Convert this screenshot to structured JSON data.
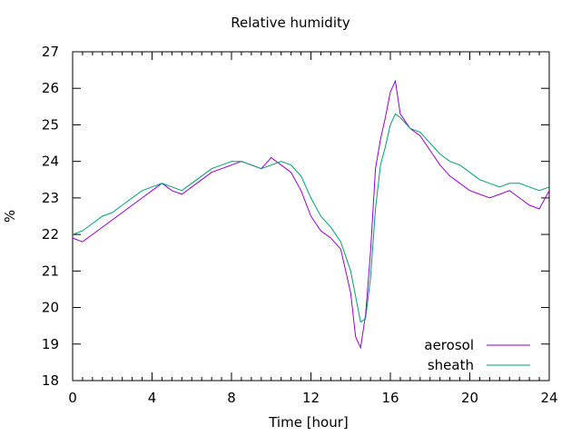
{
  "chart_data": {
    "type": "line",
    "title": "Relative humidity",
    "xlabel": "Time [hour]",
    "ylabel": "%",
    "xlim": [
      0,
      24
    ],
    "ylim": [
      18,
      27
    ],
    "xticks": [
      0,
      4,
      8,
      12,
      16,
      20,
      24
    ],
    "yticks": [
      18,
      19,
      20,
      21,
      22,
      23,
      24,
      25,
      26,
      27
    ],
    "grid": false,
    "legend": "bottom-right",
    "series": [
      {
        "name": "aerosol",
        "color": "#9400d3",
        "x": [
          0,
          0.5,
          1,
          1.5,
          2,
          2.5,
          3,
          3.5,
          4,
          4.5,
          5,
          5.5,
          6,
          6.5,
          7,
          7.5,
          8,
          8.5,
          9,
          9.5,
          10,
          10.5,
          11,
          11.5,
          12,
          12.5,
          13,
          13.5,
          14,
          14.25,
          14.5,
          14.75,
          15,
          15.25,
          15.5,
          15.75,
          16,
          16.25,
          16.5,
          17,
          17.5,
          18,
          18.5,
          19,
          19.5,
          20,
          20.5,
          21,
          21.5,
          22,
          22.5,
          23,
          23.5,
          24
        ],
        "y": [
          21.9,
          21.8,
          22.0,
          22.2,
          22.4,
          22.6,
          22.8,
          23.0,
          23.2,
          23.4,
          23.2,
          23.1,
          23.3,
          23.5,
          23.7,
          23.8,
          23.9,
          24.0,
          23.9,
          23.8,
          24.1,
          23.9,
          23.7,
          23.2,
          22.5,
          22.1,
          21.9,
          21.6,
          20.4,
          19.2,
          18.9,
          19.8,
          21.5,
          23.8,
          24.6,
          25.2,
          25.9,
          26.2,
          25.3,
          24.9,
          24.7,
          24.3,
          23.9,
          23.6,
          23.4,
          23.2,
          23.1,
          23.0,
          23.1,
          23.2,
          23.0,
          22.8,
          22.7,
          23.2
        ]
      },
      {
        "name": "sheath",
        "color": "#009e73",
        "x": [
          0,
          0.5,
          1,
          1.5,
          2,
          2.5,
          3,
          3.5,
          4,
          4.5,
          5,
          5.5,
          6,
          6.5,
          7,
          7.5,
          8,
          8.5,
          9,
          9.5,
          10,
          10.5,
          11,
          11.5,
          12,
          12.5,
          13,
          13.5,
          14,
          14.5,
          14.75,
          15,
          15.25,
          15.5,
          15.75,
          16,
          16.25,
          16.5,
          17,
          17.5,
          18,
          18.5,
          19,
          19.5,
          20,
          20.5,
          21,
          21.5,
          22,
          22.5,
          23,
          23.5,
          24
        ],
        "y": [
          22.0,
          22.1,
          22.3,
          22.5,
          22.6,
          22.8,
          23.0,
          23.2,
          23.3,
          23.4,
          23.3,
          23.2,
          23.4,
          23.6,
          23.8,
          23.9,
          24.0,
          24.0,
          23.9,
          23.8,
          23.9,
          24.0,
          23.9,
          23.6,
          23.0,
          22.5,
          22.2,
          21.8,
          21.0,
          19.6,
          19.7,
          20.8,
          22.7,
          23.9,
          24.4,
          25.0,
          25.3,
          25.2,
          24.9,
          24.8,
          24.5,
          24.2,
          24.0,
          23.9,
          23.7,
          23.5,
          23.4,
          23.3,
          23.4,
          23.4,
          23.3,
          23.2,
          23.3
        ]
      }
    ]
  }
}
